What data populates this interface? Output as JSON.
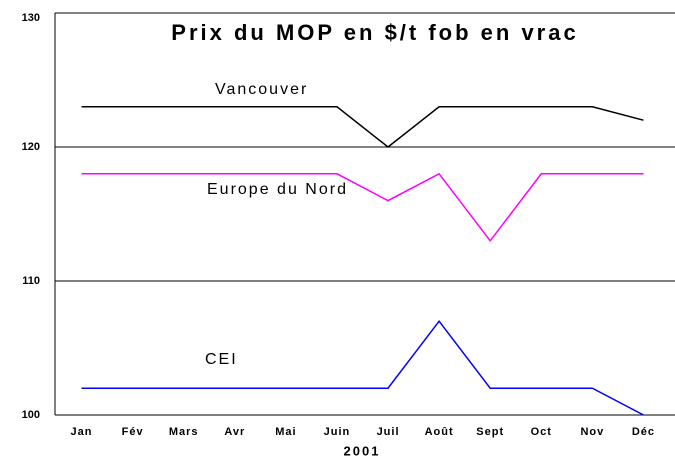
{
  "chart_data": {
    "type": "line",
    "title": "Prix du MOP en $/t fob en vrac",
    "x_label": "2001",
    "categories": [
      "Jan",
      "Fév",
      "Mars",
      "Avr",
      "Mai",
      "Juin",
      "Juil",
      "Août",
      "Sept",
      "Oct",
      "Nov",
      "Déc"
    ],
    "series": [
      {
        "name": "Vancouver",
        "color": "#000000",
        "values": [
          123,
          123,
          123,
          123,
          123,
          123,
          120,
          123,
          123,
          123,
          123,
          122
        ]
      },
      {
        "name": "Europe du Nord",
        "color": "#ff00ff",
        "values": [
          118,
          118,
          118,
          118,
          118,
          118,
          116,
          118,
          113,
          118,
          118,
          118
        ]
      },
      {
        "name": "CEI",
        "color": "#0000ff",
        "values": [
          102,
          102,
          102,
          102,
          102,
          102,
          102,
          107,
          102,
          102,
          102,
          100
        ]
      }
    ],
    "ylim": [
      100,
      130
    ],
    "yticks": [
      100,
      110,
      120,
      130
    ],
    "grid": true
  }
}
